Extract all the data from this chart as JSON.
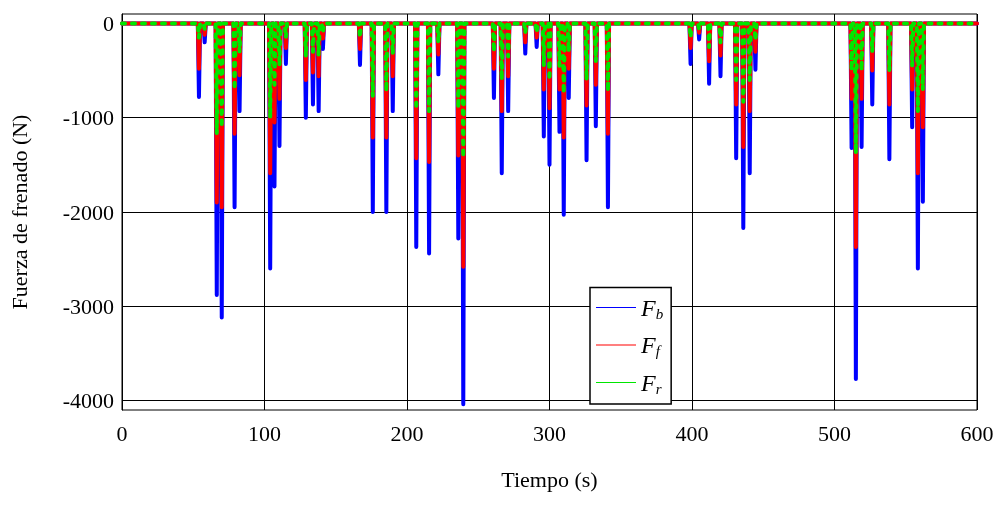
{
  "chart_data": {
    "type": "line",
    "xlabel": "Tiempo (s)",
    "ylabel": "Fuerza de frenado (N)",
    "xlim": [
      0,
      600
    ],
    "xticks": [
      0,
      100,
      200,
      300,
      400,
      500,
      600
    ],
    "ylim": [
      -4100,
      100
    ],
    "yticks": [
      -4000,
      -3000,
      -2000,
      -1000,
      0
    ],
    "grid": true,
    "legend": "bottom",
    "marker": "none",
    "x": [
      0,
      53.2,
      54,
      54.8,
      57.2,
      58,
      58.8,
      65.7,
      66.5,
      67.3,
      69.2,
      70,
      70.8,
      78.2,
      79,
      79.8,
      81.7,
      82.5,
      83.3,
      103.2,
      104,
      104.8,
      106.2,
      107,
      107.8,
      109.7,
      110.5,
      111.3,
      114.2,
      115,
      115.8,
      128.2,
      129,
      129.8,
      133.2,
      134,
      134.8,
      137.2,
      138,
      138.8,
      140.2,
      141,
      141.8,
      166.2,
      167,
      167.8,
      175.2,
      176,
      176.8,
      184.7,
      185.5,
      186.3,
      189.2,
      190,
      190.8,
      205.7,
      206.5,
      207.3,
      214.7,
      215.5,
      216.3,
      221.2,
      222,
      222.8,
      235.2,
      236,
      236.8,
      238.7,
      239.5,
      240.3,
      260.2,
      261,
      261.8,
      265.7,
      266.5,
      267.3,
      270.2,
      271,
      271.8,
      282.2,
      283,
      283.8,
      290.2,
      291,
      291.8,
      295.2,
      296,
      296.8,
      299.2,
      300,
      300.8,
      306.2,
      307,
      307.8,
      309.2,
      310,
      310.8,
      312.7,
      313.5,
      314.3,
      325.2,
      326,
      326.8,
      331.7,
      332.5,
      333.3,
      340.2,
      341,
      341.8,
      398.2,
      399,
      399.8,
      404.2,
      405,
      405.8,
      411.2,
      412,
      412.8,
      419.2,
      420,
      420.8,
      430.2,
      431,
      431.8,
      435.2,
      436,
      436.8,
      439.7,
      440.5,
      441.3,
      443.7,
      444.5,
      445.3,
      511.2,
      512,
      512.8,
      514.2,
      515,
      515.8,
      518.2,
      519,
      519.8,
      525.7,
      526.5,
      527.3,
      537.7,
      538.5,
      539.3,
      553.7,
      554.5,
      555.3,
      557.7,
      558.5,
      559.3,
      561.2,
      562,
      562.8,
      600
    ],
    "series": [
      {
        "name": "F$_{b}$",
        "color": "#0000ff",
        "line_style": "solid",
        "values": [
          0,
          0,
          -780,
          0,
          0,
          -200,
          0,
          0,
          -2880,
          0,
          0,
          -3120,
          0,
          0,
          -1950,
          0,
          0,
          -930,
          0,
          0,
          -2600,
          0,
          0,
          -1730,
          0,
          0,
          -1300,
          0,
          0,
          -430,
          0,
          0,
          -1000,
          0,
          0,
          -860,
          0,
          0,
          -930,
          0,
          0,
          -270,
          0,
          0,
          -440,
          0,
          0,
          -2000,
          0,
          0,
          -2000,
          0,
          0,
          -930,
          0,
          0,
          -2370,
          0,
          0,
          -2440,
          0,
          0,
          -540,
          0,
          0,
          -2280,
          0,
          0,
          -4040,
          0,
          0,
          -790,
          0,
          0,
          -1590,
          0,
          0,
          -930,
          0,
          0,
          -320,
          0,
          0,
          -250,
          0,
          0,
          -1200,
          0,
          0,
          -1500,
          0,
          0,
          -1150,
          0,
          0,
          -2030,
          0,
          0,
          -790,
          0,
          0,
          -1450,
          0,
          0,
          -1090,
          0,
          0,
          -1950,
          0,
          0,
          -430,
          0,
          0,
          -170,
          0,
          0,
          -640,
          0,
          0,
          -560,
          0,
          0,
          -1430,
          0,
          0,
          -2170,
          0,
          0,
          -1590,
          0,
          0,
          -490,
          0,
          0,
          -1320,
          0,
          0,
          -3770,
          0,
          0,
          -1310,
          0,
          0,
          -860,
          0,
          0,
          -1440,
          0,
          0,
          -1100,
          0,
          0,
          -2600,
          0,
          0,
          -1890,
          0,
          0
        ]
      },
      {
        "name": "F$_{f}$",
        "color": "#ff0000",
        "line_style": "solid",
        "values": [
          0,
          0,
          -480,
          0,
          0,
          -120,
          0,
          0,
          -1900,
          0,
          0,
          -1950,
          0,
          0,
          -1170,
          0,
          0,
          -550,
          0,
          0,
          -1590,
          0,
          0,
          -1050,
          0,
          0,
          -800,
          0,
          0,
          -260,
          0,
          0,
          -600,
          0,
          0,
          -520,
          0,
          0,
          -560,
          0,
          0,
          -160,
          0,
          0,
          -270,
          0,
          0,
          -1210,
          0,
          0,
          -1210,
          0,
          0,
          -560,
          0,
          0,
          -1430,
          0,
          0,
          -1470,
          0,
          0,
          -330,
          0,
          0,
          -1400,
          0,
          0,
          -2580,
          0,
          0,
          -480,
          0,
          0,
          -930,
          0,
          0,
          -560,
          0,
          0,
          -200,
          0,
          0,
          -150,
          0,
          0,
          -700,
          0,
          0,
          -900,
          0,
          0,
          -700,
          0,
          0,
          -1210,
          0,
          0,
          -480,
          0,
          0,
          -870,
          0,
          0,
          -650,
          0,
          0,
          -1170,
          0,
          0,
          -260,
          0,
          0,
          -100,
          0,
          0,
          -400,
          0,
          0,
          -340,
          0,
          0,
          -860,
          0,
          0,
          -1310,
          0,
          0,
          -930,
          0,
          0,
          -300,
          0,
          0,
          -800,
          0,
          0,
          -2370,
          0,
          0,
          -800,
          0,
          0,
          -500,
          0,
          0,
          -860,
          0,
          0,
          -700,
          0,
          0,
          -1590,
          0,
          0,
          -1100,
          0,
          0
        ]
      },
      {
        "name": "F$_{r}$",
        "color": "#00e600",
        "line_style": "dotted",
        "values": [
          0,
          0,
          -150,
          0,
          0,
          -60,
          0,
          0,
          -1170,
          0,
          0,
          -1100,
          0,
          0,
          -700,
          0,
          0,
          -300,
          0,
          0,
          -1000,
          0,
          0,
          -650,
          0,
          0,
          -450,
          0,
          0,
          -150,
          0,
          0,
          -350,
          0,
          0,
          -300,
          0,
          0,
          -340,
          0,
          0,
          -100,
          0,
          0,
          -150,
          0,
          0,
          -770,
          0,
          0,
          -720,
          0,
          0,
          -330,
          0,
          0,
          -910,
          0,
          0,
          -930,
          0,
          0,
          -200,
          0,
          0,
          -900,
          0,
          0,
          -1420,
          0,
          0,
          -300,
          0,
          0,
          -600,
          0,
          0,
          -350,
          0,
          0,
          -100,
          0,
          0,
          -100,
          0,
          0,
          -450,
          0,
          0,
          -600,
          0,
          0,
          -450,
          0,
          0,
          -740,
          0,
          0,
          -300,
          0,
          0,
          -600,
          0,
          0,
          -400,
          0,
          0,
          -720,
          0,
          0,
          -150,
          0,
          0,
          -60,
          0,
          0,
          -250,
          0,
          0,
          -200,
          0,
          0,
          -600,
          0,
          0,
          -830,
          0,
          0,
          -600,
          0,
          0,
          -180,
          0,
          0,
          -500,
          0,
          0,
          -1380,
          0,
          0,
          -500,
          0,
          0,
          -300,
          0,
          0,
          -500,
          0,
          0,
          -450,
          0,
          0,
          -930,
          0,
          0,
          -700,
          0,
          0
        ]
      }
    ]
  }
}
